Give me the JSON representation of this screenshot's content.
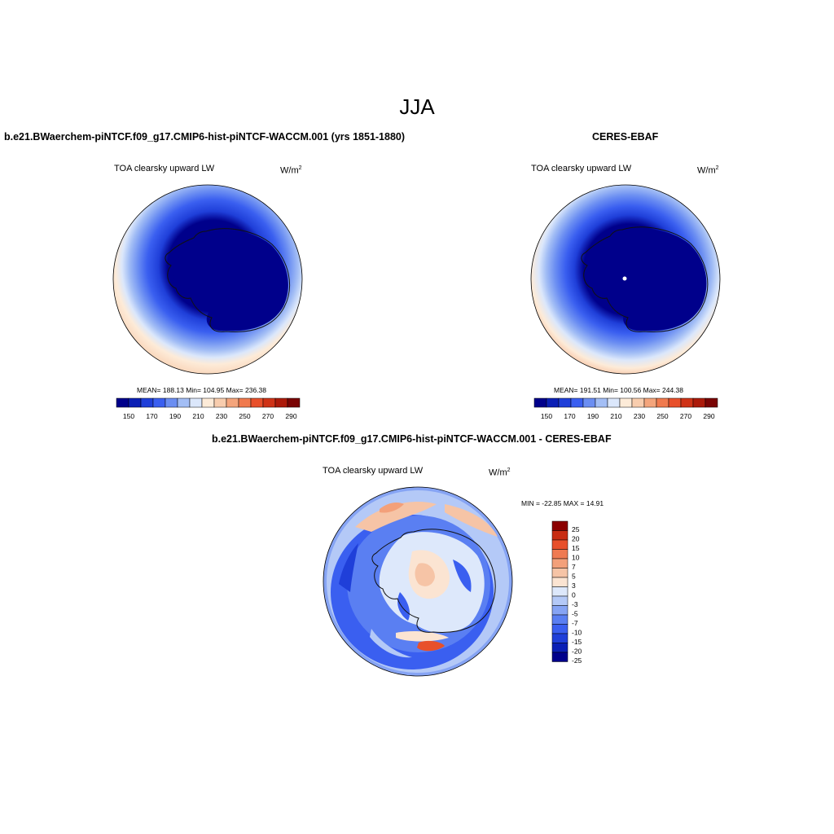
{
  "page": {
    "season": "JJA"
  },
  "panels": {
    "model": {
      "title": "b.e21.BWaerchem-piNTCF.f09_g17.CMIP6-hist-piNTCF-WACCM.001 (yrs 1851-1880)",
      "variable": "TOA clearsky upward LW",
      "units_base": "W/m",
      "units_exp": "2",
      "stats": "MEAN= 188.13  Min= 104.95  Max= 236.38"
    },
    "obs": {
      "title": "CERES-EBAF",
      "variable": "TOA clearsky upward LW",
      "units_base": "W/m",
      "units_exp": "2",
      "stats": "MEAN= 191.51  Min= 100.56  Max= 244.38"
    },
    "diff": {
      "title": "b.e21.BWaerchem-piNTCF.f09_g17.CMIP6-hist-piNTCF-WACCM.001 - CERES-EBAF",
      "variable": "TOA clearsky upward LW",
      "units_base": "W/m",
      "units_exp": "2",
      "stats": "MIN = -22.85 MAX =  14.91"
    }
  },
  "colorbars": {
    "abs": {
      "colors": [
        "#00008b",
        "#0a1fb5",
        "#1f3fd9",
        "#3a5ff0",
        "#6b8ef2",
        "#a3bef5",
        "#dbe7fb",
        "#fdebd8",
        "#f8cdae",
        "#f4a57c",
        "#f07a4e",
        "#e8502b",
        "#cf3317",
        "#ac1a0a",
        "#7a0404"
      ],
      "ticks": [
        "150",
        "170",
        "190",
        "210",
        "230",
        "250",
        "270",
        "290"
      ]
    },
    "diff": {
      "colors": [
        "#00008b",
        "#0a1fb5",
        "#1f3fd9",
        "#3a5ff0",
        "#5a7ff2",
        "#86a4f4",
        "#b4c9f7",
        "#dde8fb",
        "#fbe4d2",
        "#f6c4a6",
        "#f3a07a",
        "#ef7a52",
        "#e8502b",
        "#c82c12",
        "#8b0000"
      ],
      "ticks": [
        "-25",
        "-20",
        "-15",
        "-10",
        "-7",
        "-5",
        "-3",
        "0",
        "3",
        "5",
        "7",
        "10",
        "15",
        "20",
        "25"
      ]
    }
  },
  "chart_data": [
    {
      "type": "heatmap",
      "name": "model",
      "projection": "south-polar stereographic",
      "mean": 188.13,
      "min": 104.95,
      "max": 236.38,
      "contour_levels": [
        150,
        160,
        170,
        180,
        190,
        200,
        210,
        220,
        230,
        240,
        250,
        260,
        270,
        280,
        290
      ]
    },
    {
      "type": "heatmap",
      "name": "obs",
      "projection": "south-polar stereographic",
      "mean": 191.51,
      "min": 100.56,
      "max": 244.38,
      "contour_levels": [
        150,
        160,
        170,
        180,
        190,
        200,
        210,
        220,
        230,
        240,
        250,
        260,
        270,
        280,
        290
      ]
    },
    {
      "type": "heatmap",
      "name": "difference",
      "projection": "south-polar stereographic",
      "min": -22.85,
      "max": 14.91,
      "contour_levels": [
        -25,
        -20,
        -15,
        -10,
        -7,
        -5,
        -3,
        0,
        3,
        5,
        7,
        10,
        15,
        20,
        25
      ]
    }
  ]
}
